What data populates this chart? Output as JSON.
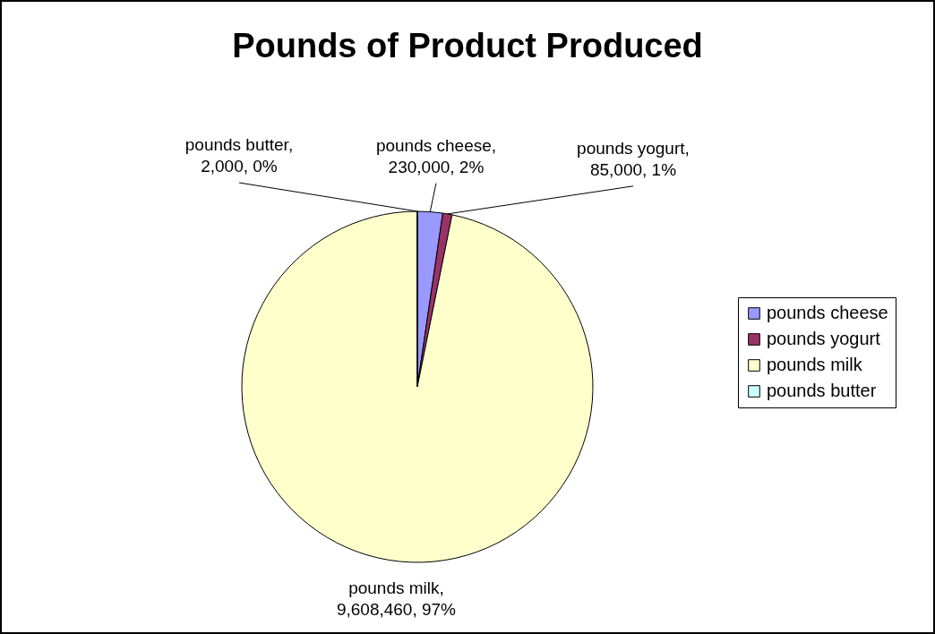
{
  "chart_data": {
    "type": "pie",
    "title": "Pounds of Product Produced",
    "categories": [
      "pounds cheese",
      "pounds yogurt",
      "pounds milk",
      "pounds butter"
    ],
    "values": [
      230000,
      85000,
      9608460,
      2000
    ],
    "colors": [
      "#9999ff",
      "#993366",
      "#ffffcc",
      "#ccffff"
    ],
    "value_labels": [
      "pounds cheese, 230,000, 2%",
      "pounds yogurt, 85,000, 1%",
      "pounds milk, 9,608,460, 97%",
      "pounds butter, 2,000, 0%"
    ],
    "legend": "right"
  }
}
